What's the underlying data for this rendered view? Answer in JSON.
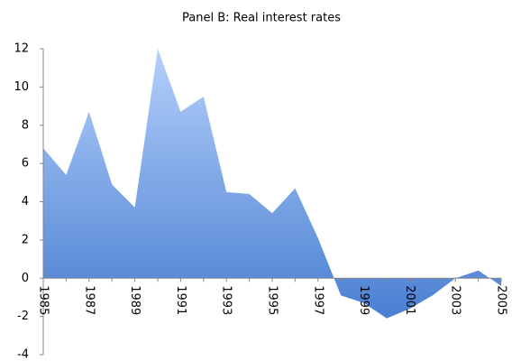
{
  "chart_data": {
    "type": "area",
    "title": "Panel B: Real interest rates",
    "categories": [
      "1985",
      null,
      "1987",
      null,
      "1989",
      null,
      "1991",
      null,
      "1993",
      null,
      "1995",
      null,
      "1997",
      null,
      "1999",
      null,
      "2001",
      null,
      "2003",
      null,
      "2005"
    ],
    "values": [
      6.8,
      5.4,
      8.7,
      4.9,
      3.7,
      12.0,
      8.7,
      9.5,
      4.5,
      4.4,
      3.4,
      4.7,
      2.1,
      -0.9,
      -1.3,
      -2.1,
      -1.6,
      -0.9,
      0.0,
      0.4,
      -0.4
    ],
    "color": "#4a7fd2",
    "ylim": [
      -4,
      12
    ],
    "yticks": [
      -4,
      -2,
      0,
      2,
      4,
      6,
      8,
      10,
      12
    ]
  }
}
